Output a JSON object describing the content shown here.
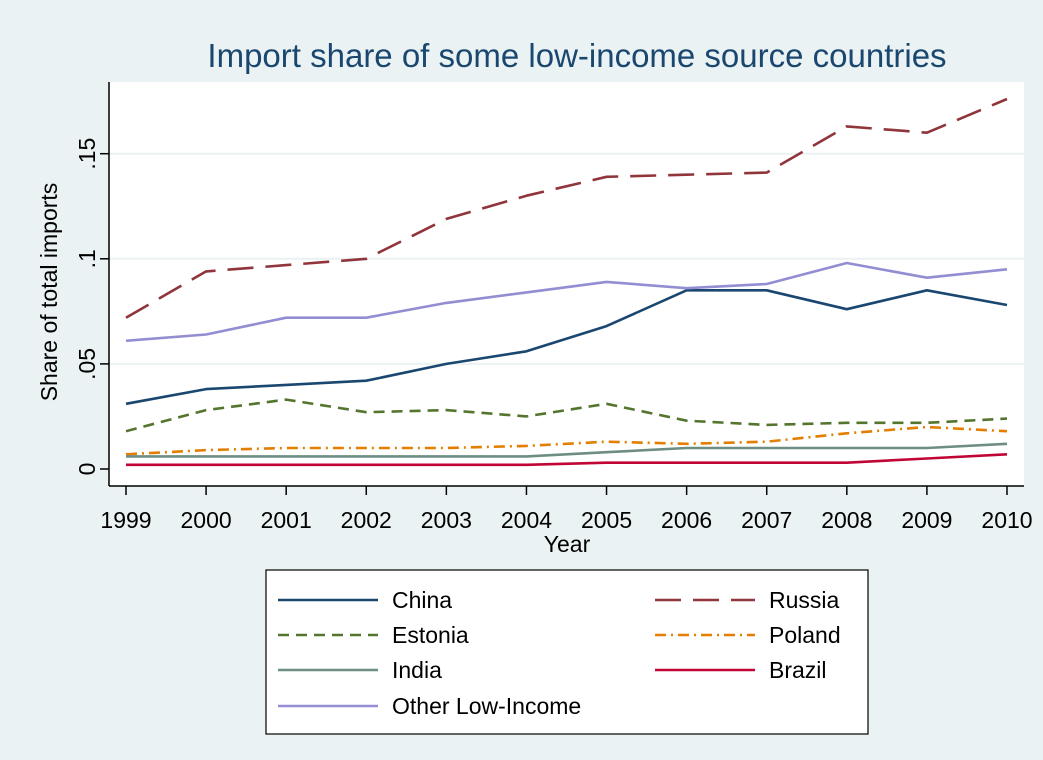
{
  "chart_data": {
    "type": "line",
    "title": "Import share of some low-income source countries",
    "xlabel": "Year",
    "ylabel": "Share of total imports",
    "x": [
      1999,
      2000,
      2001,
      2002,
      2003,
      2004,
      2005,
      2006,
      2007,
      2008,
      2009,
      2010
    ],
    "xticks": [
      "1999",
      "2000",
      "2001",
      "2002",
      "2003",
      "2004",
      "2005",
      "2006",
      "2007",
      "2008",
      "2009",
      "2010"
    ],
    "yticks": [
      {
        "value": 0,
        "label": "0"
      },
      {
        "value": 0.05,
        "label": ".05"
      },
      {
        "value": 0.1,
        "label": ".1"
      },
      {
        "value": 0.15,
        "label": ".15"
      }
    ],
    "ylim": [
      0,
      0.18
    ],
    "grid": true,
    "legend_position": "bottom",
    "series": [
      {
        "name": "China",
        "color": "#1a476f",
        "dash": "solid",
        "values": [
          0.031,
          0.038,
          0.04,
          0.042,
          0.05,
          0.056,
          0.068,
          0.085,
          0.085,
          0.076,
          0.085,
          0.078
        ]
      },
      {
        "name": "Russia",
        "color": "#90353b",
        "dash": "longdash",
        "values": [
          0.072,
          0.094,
          0.097,
          0.1,
          0.119,
          0.13,
          0.139,
          0.14,
          0.141,
          0.163,
          0.16,
          0.176
        ]
      },
      {
        "name": "Estonia",
        "color": "#55752f",
        "dash": "dash",
        "values": [
          0.018,
          0.028,
          0.033,
          0.027,
          0.028,
          0.025,
          0.031,
          0.023,
          0.021,
          0.022,
          0.022,
          0.024
        ]
      },
      {
        "name": "Poland",
        "color": "#e37e00",
        "dash": "dashdot",
        "values": [
          0.007,
          0.009,
          0.01,
          0.01,
          0.01,
          0.011,
          0.013,
          0.012,
          0.013,
          0.017,
          0.02,
          0.018
        ]
      },
      {
        "name": "India",
        "color": "#6e8e84",
        "dash": "solid",
        "values": [
          0.006,
          0.006,
          0.006,
          0.006,
          0.006,
          0.006,
          0.008,
          0.01,
          0.01,
          0.01,
          0.01,
          0.012
        ]
      },
      {
        "name": "Brazil",
        "color": "#c10534",
        "dash": "solid",
        "values": [
          0.002,
          0.002,
          0.002,
          0.002,
          0.002,
          0.002,
          0.003,
          0.003,
          0.003,
          0.003,
          0.005,
          0.007
        ]
      },
      {
        "name": "Other Low-Income",
        "color": "#938dd2",
        "dash": "solid",
        "values": [
          0.061,
          0.064,
          0.072,
          0.072,
          0.079,
          0.084,
          0.089,
          0.086,
          0.088,
          0.098,
          0.091,
          0.095
        ]
      }
    ]
  },
  "colors": {
    "background": "#eaf2f3",
    "plot_background": "#ffffff",
    "title": "#1a476f",
    "gridline": "#eaf2f3",
    "axis": "#000000"
  }
}
